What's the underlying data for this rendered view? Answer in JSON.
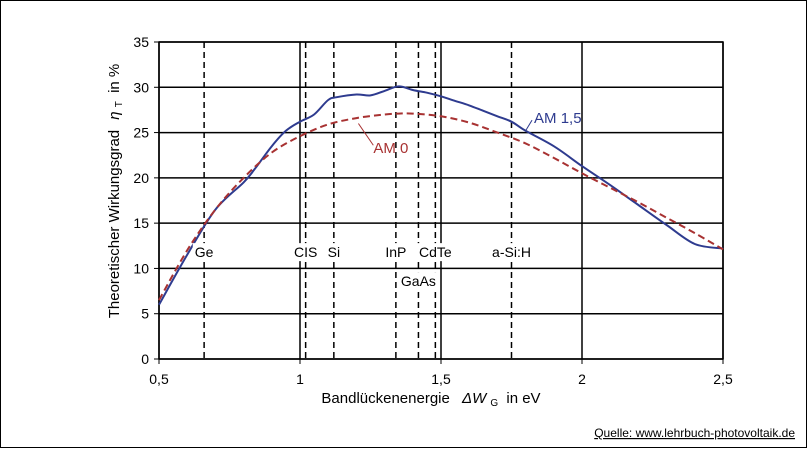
{
  "chart_data": {
    "type": "line",
    "xlabel_text": "Bandlückenenergie",
    "xlabel_symbol": "ΔW",
    "xlabel_subscript": "G",
    "xlabel_unit": "in eV",
    "ylabel_text": "Theoretischer Wirkungsgrad",
    "ylabel_symbol": "η",
    "ylabel_subscript": "T",
    "ylabel_unit": "in %",
    "xlim": [
      0.5,
      2.5
    ],
    "ylim": [
      0,
      35
    ],
    "x_ticks": [
      0.5,
      1,
      1.5,
      2,
      2.5
    ],
    "x_tick_labels": [
      "0,5",
      "1",
      "1,5",
      "2",
      "2,5"
    ],
    "y_ticks": [
      0,
      5,
      10,
      15,
      20,
      25,
      30,
      35
    ],
    "y_tick_labels": [
      "0",
      "5",
      "10",
      "15",
      "20",
      "25",
      "30",
      "35"
    ],
    "grid": true,
    "series": [
      {
        "name": "AM 1,5",
        "color": "#2e3b8f",
        "dash": "solid",
        "x": [
          0.5,
          0.6,
          0.7,
          0.8,
          0.84,
          0.9,
          0.95,
          1.0,
          1.05,
          1.1,
          1.13,
          1.2,
          1.25,
          1.3,
          1.35,
          1.4,
          1.45,
          1.5,
          1.55,
          1.6,
          1.65,
          1.7,
          1.75,
          1.8,
          1.9,
          2.0,
          2.1,
          2.2,
          2.3,
          2.4,
          2.5
        ],
        "y": [
          6.0,
          11.5,
          16.5,
          19.5,
          21.0,
          23.5,
          25.2,
          26.2,
          27.0,
          28.6,
          28.9,
          29.2,
          29.1,
          29.6,
          30.1,
          29.7,
          29.4,
          29.0,
          28.5,
          28.0,
          27.4,
          26.8,
          26.2,
          25.2,
          23.5,
          21.3,
          19.2,
          17.0,
          14.8,
          12.7,
          12.2
        ]
      },
      {
        "name": "AM 0",
        "color": "#a83232",
        "dash": "dashed",
        "x": [
          0.5,
          0.6,
          0.7,
          0.8,
          0.9,
          1.0,
          1.1,
          1.2,
          1.3,
          1.35,
          1.4,
          1.5,
          1.6,
          1.7,
          1.8,
          1.9,
          2.0,
          2.1,
          2.2,
          2.3,
          2.4,
          2.5
        ],
        "y": [
          6.5,
          12.0,
          16.5,
          20.0,
          22.8,
          24.6,
          25.9,
          26.6,
          27.0,
          27.1,
          27.1,
          26.8,
          26.1,
          25.0,
          23.8,
          22.2,
          20.5,
          18.9,
          17.3,
          15.6,
          13.9,
          12.1
        ]
      }
    ],
    "series_labels": [
      {
        "text": "AM 1,5",
        "x": 1.83,
        "y": 26.6
      },
      {
        "text": "AM 0",
        "x": 1.26,
        "y": 23.3
      }
    ],
    "reference_lines": [
      {
        "label": "Ge",
        "x": 0.66,
        "style": "dashed",
        "label_y": 11.8
      },
      {
        "label": "CIS",
        "x": 1.02,
        "style": "dashed",
        "label_y": 11.8
      },
      {
        "label": "Si",
        "x": 1.12,
        "style": "dashed",
        "label_y": 11.8
      },
      {
        "label": "InP",
        "x": 1.34,
        "style": "dashed",
        "label_y": 11.8
      },
      {
        "label": "GaAs",
        "x": 1.42,
        "style": "dashed",
        "label_y": 8.6
      },
      {
        "label": "CdTe",
        "x": 1.48,
        "style": "dashed",
        "label_y": 11.8
      },
      {
        "label": "a-Si:H",
        "x": 1.75,
        "style": "dashed",
        "label_y": 11.8
      }
    ],
    "source_label": "Quelle: www.lehrbuch-photovoltaik.de"
  }
}
